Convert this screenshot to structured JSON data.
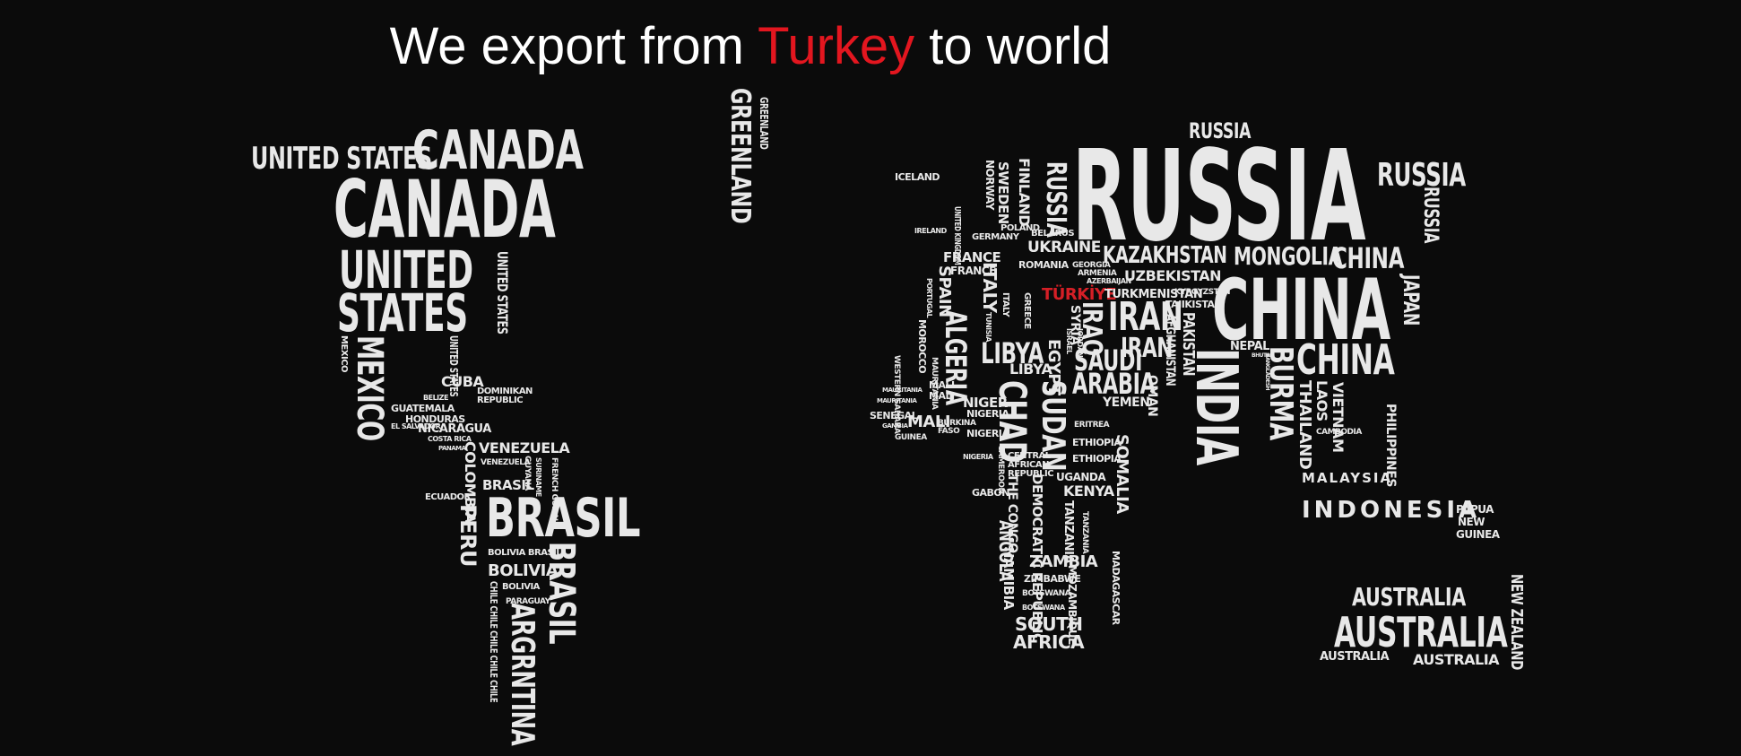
{
  "headline": {
    "part1": "We export from ",
    "highlight": "Turkey",
    "part2": " to world"
  },
  "colors": {
    "background": "#0b0b0b",
    "text": "#e8e8e8",
    "accent": "#d51f26"
  },
  "map_words": {
    "us1": "UNITED STATES",
    "canada1": "CANADA",
    "canada2": "CANADA",
    "united": "UNITED",
    "states": "STATES",
    "us_v1": "UNITED STATES",
    "us_v2": "UNITED STATES",
    "mexico_small": "MEXICO",
    "mexico": "MEXICO",
    "greenland": "GREENLAND",
    "greenland_s": "GREENLAND",
    "cuba": "CUBA",
    "dominican": "DOMINIKAN REPUBLIC",
    "belize": "BELIZE",
    "guatemala": "GUATEMALA",
    "honduras": "HONDURAS",
    "salvador": "EL SALVADOR",
    "nicaragua": "NICARAGUA",
    "costarica": "COSTA RICA",
    "panama": "PANAMA",
    "venezuela": "VENEZUELA",
    "venezuela_s": "VENEZUELA",
    "colombia": "COLOMBIA",
    "guyana": "GUYANA",
    "suriname": "SURINAME",
    "french_guiana": "FRENCH GUIANA",
    "ecuador": "ECUADOR",
    "peru": "PERU",
    "brasil1": "BRASIL",
    "brasil_s": "BRASIL",
    "bolivia_brasil": "BOLIVIA BRASIL",
    "bolivia": "BOLIVIA",
    "bolivia_s": "BOLIVIA",
    "paraguay": "PARAGUAY",
    "brasil2": "BRASIL",
    "chile": "CHILE CHILE CHILE CHILE CHILE",
    "argentina": "ARGRNTINA",
    "russia_s": "RUSSIA",
    "russia_big": "RUSSIA",
    "russia_r": "RUSSIA",
    "russia_rv": "RUSSIA",
    "russia_v": "RUSSIA",
    "iceland": "ICELAND",
    "norway": "NORWAY",
    "sweden": "SWEDEN",
    "finland": "FINLAND",
    "uk": "UNITED KINGDOM",
    "ireland": "IRELAND",
    "germany": "GERMANY",
    "poland": "POLAND",
    "belarus": "BELARUS",
    "ukraine": "UKRAINE",
    "france1": "FRANCE",
    "france2": "FRANCE",
    "romania": "ROMANIA",
    "spain": "SPAIN",
    "portugal": "PORTUGAL",
    "italy1": "ITALY",
    "italy2": "ITALY",
    "greece": "GREECE",
    "kazakhstan": "KAZAKHSTAN",
    "mongolia": "MONGOLIA",
    "china_s": "CHINA",
    "uzbekistan": "UZBEKISTAN",
    "georgia": "GEORGIA",
    "armenia": "ARMENIA",
    "azerbaijan": "AZERBAIJAN",
    "turkiye": "TÜRKİYE",
    "turkmenistan": "TURKMENISTAN",
    "kyrgyzstan": "KYRGYZSTAN",
    "tajikistan": "TAJIKISTAN",
    "china_big": "CHINA",
    "japan": "JAPAN",
    "iran1": "IRAN",
    "iran2": "IRAN",
    "iraq": "IRAQ",
    "syria": "SYRIA",
    "israel": "ISRAEL",
    "jordan": "JORDAN",
    "afghanistan": "AFGHANISTAN",
    "pakistan": "PAKISTAN",
    "nepal": "NEPAL",
    "bhutan": "BHUTAN",
    "bangladesh": "BANGLADESH",
    "india": "INDIA",
    "burma": "BURMA",
    "china3": "CHINA",
    "laos": "LAOS",
    "vietnam": "VIETNAM",
    "thailand": "THAILAND",
    "cambodia": "CAMBODIA",
    "philippines": "PHILIPPINES",
    "saudi": "SAUDI",
    "arabia": "ARABIA",
    "yemen": "YEMEN",
    "oman": "OMAN",
    "tunisia": "TUNISIA",
    "morocco": "MOROCCO",
    "western_sahara": "WESTERN SAHARA",
    "algeria": "ALGERIA",
    "libya1": "LIBYA",
    "libya2": "LIBYA",
    "egypt": "EGYPT",
    "mauritania1": "MAURITANIA",
    "mauritania2": "MAURITANIA",
    "mauritania3": "MAURITANIA",
    "senegal": "SENEGAL",
    "gambia": "GAMBIA",
    "guinea": "GUINEA",
    "mali1": "MALI",
    "mali2": "MALI",
    "mali3": "MALI",
    "burkina": "BURKINA FASO",
    "niger1": "NIGER",
    "niger2": "NIGERIA",
    "nigeria1": "NIGERIA",
    "nigeria2": "NIGERIA",
    "chad": "CHAD",
    "sudan": "SUDAN",
    "eritrea": "ERITREA",
    "ethiopia1": "ETHIOPIA",
    "ethiopia2": "ETHIOPIA",
    "somalia": "SOMALIA",
    "cameroon": "CAMEROON",
    "car": "CENTRAL AFRICAN REPUBLIC",
    "uganda": "UGANDA",
    "kenya": "KENYA",
    "gabon": "GABON",
    "drc": "DEMOCRATIC REPUBLIC",
    "congo": "THE CONGO",
    "tanzania1": "TANZANIA",
    "tanzania2": "TANZANIA",
    "angola": "ANGOLA",
    "namibia": "NAMIBIA",
    "zambia": "ZAMBIA",
    "zimbabwe": "ZIMBABWE",
    "mozambique": "MOZAMBIQUE",
    "botswana1": "BOTSWANA",
    "botswana2": "BOTSWANA",
    "madagascar": "MADAGASCAR",
    "south": "SOUTH",
    "africa": "AFRICA",
    "malaysia": "MALAYSIA",
    "indonesia": "INDONESIA",
    "papua": "PAPUA",
    "new": "NEW",
    "guinea_png": "GUINEA",
    "australia1": "AUSTRALIA",
    "australia2": "AUSTRALIA",
    "australia3": "AUSTRALIA",
    "australia4": "AUSTRALIA",
    "new_zealand": "NEW ZEALAND"
  }
}
